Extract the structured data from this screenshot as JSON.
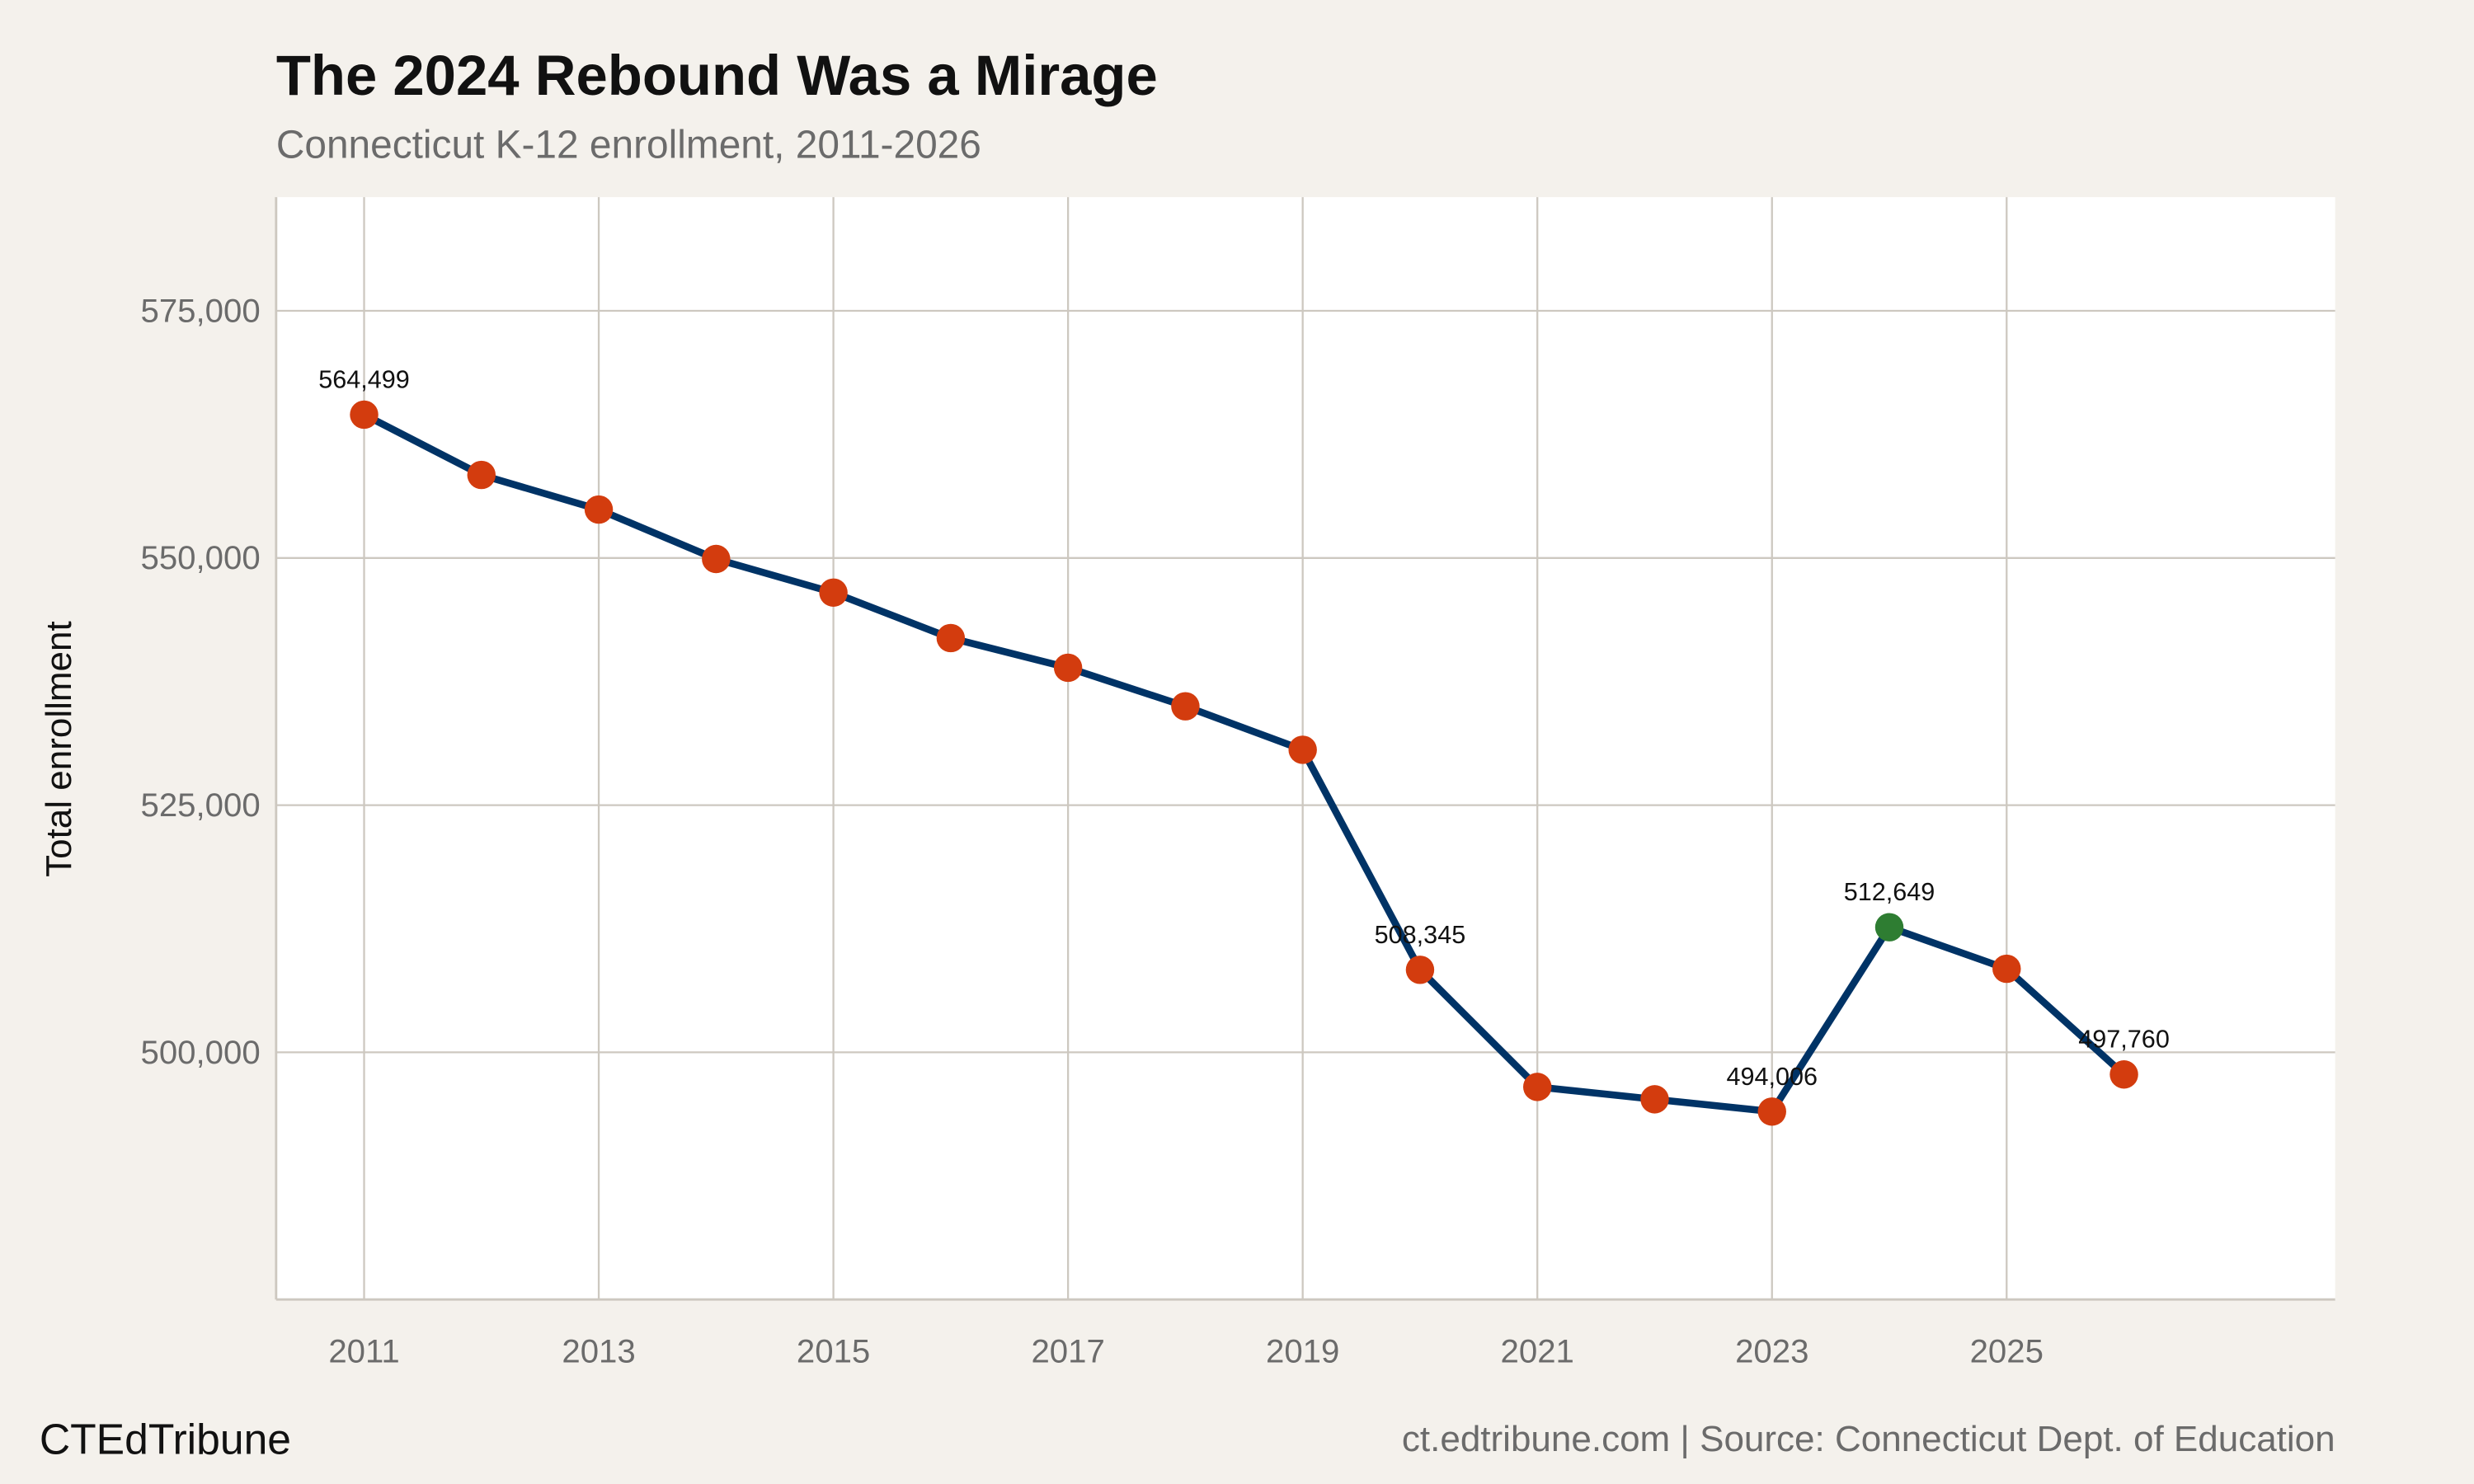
{
  "chart_data": {
    "type": "line",
    "title": "The 2024 Rebound Was a Mirage",
    "subtitle": "Connecticut K-12 enrollment, 2011-2026",
    "xlabel": "",
    "ylabel": "Total enrollment",
    "x": [
      2011,
      2012,
      2013,
      2014,
      2015,
      2016,
      2017,
      2018,
      2019,
      2020,
      2021,
      2022,
      2023,
      2024,
      2025,
      2026
    ],
    "values": [
      564499,
      558400,
      554900,
      549900,
      546500,
      541900,
      538900,
      535000,
      530600,
      508345,
      496500,
      495250,
      494006,
      512649,
      508450,
      497760
    ],
    "data_labels": {
      "2011": "564,499",
      "2020": "508,345",
      "2023": "494,006",
      "2024": "512,649",
      "2026": "497,760"
    },
    "highlight_year": 2024,
    "xlim": [
      2010.25,
      2027.8
    ],
    "ylim": [
      475000,
      586500
    ],
    "x_ticks": [
      "2011",
      "2013",
      "2015",
      "2017",
      "2019",
      "2021",
      "2023",
      "2025"
    ],
    "y_ticks": [
      "500,000",
      "525,000",
      "550,000",
      "575,000"
    ],
    "grid": true,
    "colors": {
      "line": "#003366",
      "point": "#d33c0e",
      "highlight": "#2e7d32",
      "background": "#f4f1ec",
      "panel": "#ffffff",
      "grid": "#cdc8c0"
    }
  },
  "footer": {
    "brand": "CTEdTribune",
    "source": "ct.edtribune.com | Source: Connecticut Dept. of Education"
  }
}
